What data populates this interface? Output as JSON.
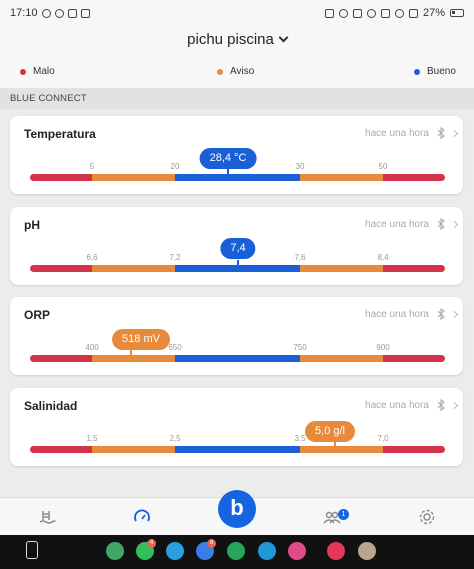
{
  "status_bar": {
    "time": "17:10",
    "battery": "27%",
    "left_icons": [
      "whatsapp-icon",
      "sync-icon",
      "home-icon",
      "image-icon"
    ],
    "right_icons": [
      "nfc-icon",
      "mute-icon",
      "bluetooth-icon",
      "alarm-icon",
      "wifi-call-icon",
      "wifi-icon",
      "signal-icon",
      "battery-icon"
    ]
  },
  "header": {
    "pool_name": "pichu piscina",
    "legend": [
      {
        "label": "Malo",
        "color": "#d2354b"
      },
      {
        "label": "Aviso",
        "color": "#e88a3c"
      },
      {
        "label": "Bueno",
        "color": "#1a5fd8"
      }
    ]
  },
  "section": {
    "label": "BLUE CONNECT"
  },
  "colors": {
    "bad": "#d2354b",
    "warn": "#e88a3c",
    "good": "#1a5fd8"
  },
  "cards": [
    {
      "name": "Temperatura",
      "time": "hace una hora",
      "ticks": [
        "5",
        "20",
        "30",
        "50"
      ],
      "value": "28,4 °C",
      "level": "good"
    },
    {
      "name": "pH",
      "time": "hace una hora",
      "ticks": [
        "6,6",
        "7,2",
        "7,6",
        "8,4"
      ],
      "value": "7,4",
      "level": "good"
    },
    {
      "name": "ORP",
      "time": "hace una hora",
      "ticks": [
        "400",
        "650",
        "750",
        "900"
      ],
      "value": "518 mV",
      "level": "warn"
    },
    {
      "name": "Salinidad",
      "time": "hace una hora",
      "ticks": [
        "1,5",
        "2,5",
        "3,5",
        "7,0"
      ],
      "value": "5,0 g/l",
      "level": "warn"
    }
  ],
  "bottom_nav": {
    "items": [
      "pool-icon",
      "gauge-icon",
      "blue-logo",
      "community-icon",
      "settings-icon"
    ],
    "center_label": "b",
    "community_badge": "1"
  },
  "dock": {
    "apps": [
      {
        "icon": "phone-app-icon",
        "color": "#3fa868"
      },
      {
        "icon": "whatsapp-app-icon",
        "color": "#2fbf5c",
        "badge": "4"
      },
      {
        "icon": "telegram-app-icon",
        "color": "#2a9fe0"
      },
      {
        "icon": "messages-app-icon",
        "color": "#3b7de8",
        "badge": "8"
      },
      {
        "icon": "business-app-icon",
        "color": "#27a65a"
      },
      {
        "icon": "edge-app-icon",
        "color": "#1d9ad6"
      },
      {
        "icon": "camera-app-icon",
        "color": "#e14b8a"
      },
      {
        "icon": "blossom-app-icon",
        "color": "#e2365d"
      },
      {
        "icon": "gallery-app-icon",
        "color": "#b9a58d"
      }
    ]
  }
}
